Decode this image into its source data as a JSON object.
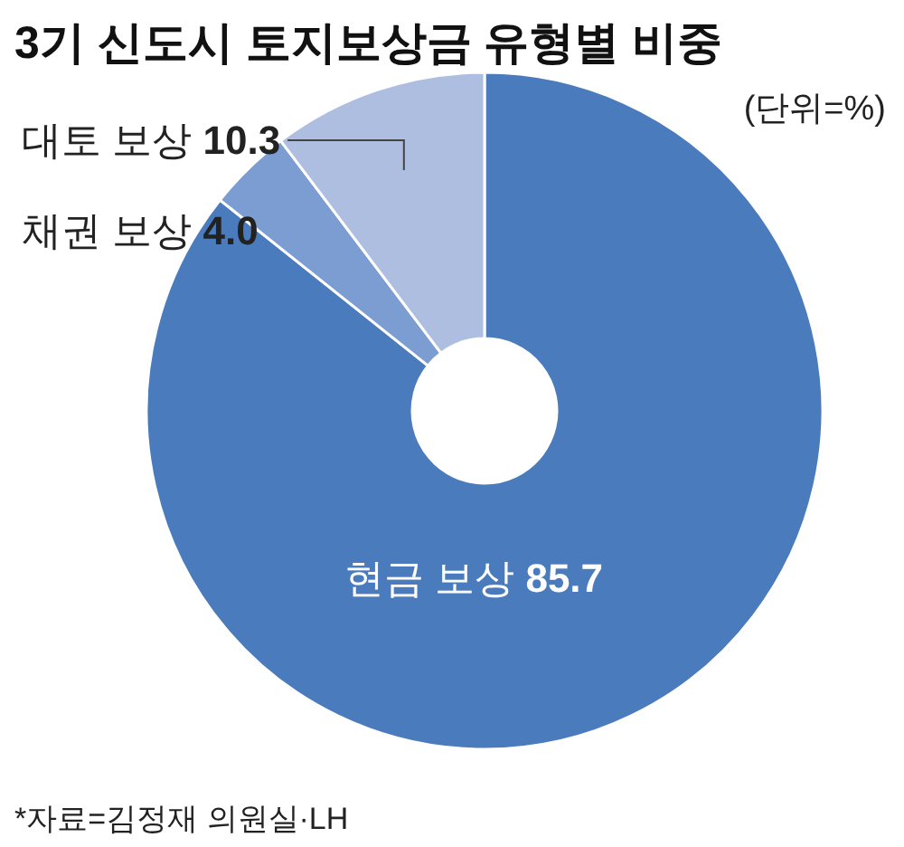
{
  "chart_data": {
    "type": "donut",
    "title": "3기 신도시 토지보상금 유형별 비중",
    "subtitle": "(단위=%)",
    "categories": [
      "현금 보상",
      "채권 보상",
      "대토 보상"
    ],
    "values": [
      85.7,
      4.0,
      10.3
    ],
    "value_labels": [
      "85.7",
      "4.0",
      "10.3"
    ],
    "colors": [
      "#4a7bbd",
      "#7c9dd2",
      "#adbee0"
    ],
    "annotations": [
      "*자료=김정재 의원실·LH"
    ]
  }
}
